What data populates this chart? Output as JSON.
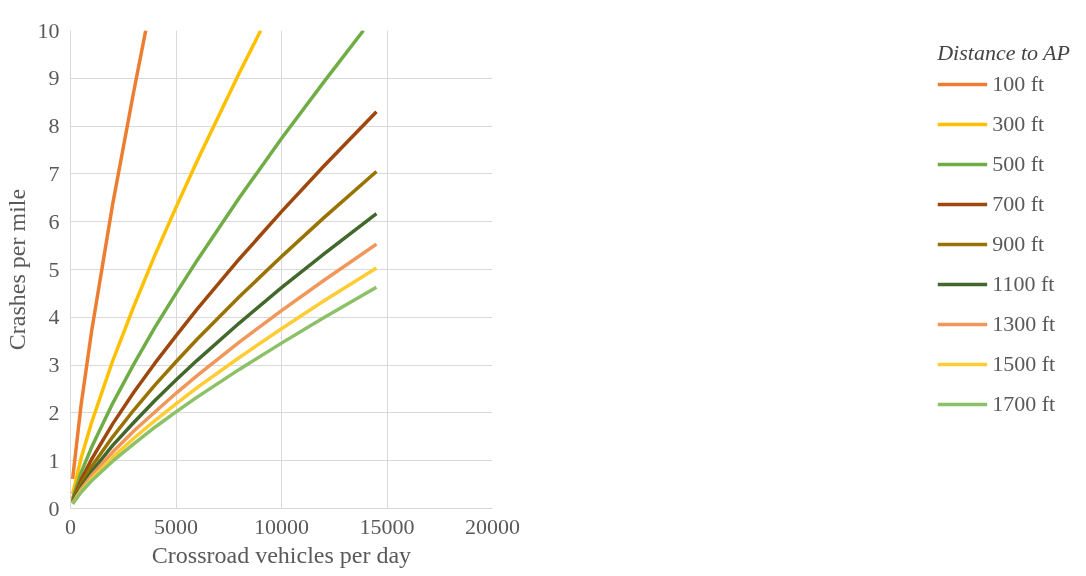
{
  "chart_data": {
    "type": "line",
    "xlabel": "Crossroad vehicles per day",
    "ylabel": "Crashes per mile",
    "legend_title": "Distance to AP",
    "xlim": [
      0,
      20000
    ],
    "xticks": [
      0,
      5000,
      10000,
      15000,
      20000
    ],
    "ylim": [
      0,
      10
    ],
    "yticks": [
      0,
      1,
      2,
      3,
      4,
      5,
      6,
      7,
      8,
      9,
      10
    ],
    "grid": true,
    "legend": "right",
    "line_style": "solid",
    "series": [
      {
        "name": "100 ft",
        "color": "#ed7d31",
        "x": [
          100,
          500,
          1000,
          2000,
          3000,
          3565
        ],
        "values": [
          0.62,
          2.16,
          3.71,
          6.37,
          8.73,
          10
        ]
      },
      {
        "name": "300 ft",
        "color": "#ffc000",
        "x": [
          100,
          500,
          1000,
          2000,
          3000,
          4000,
          5000,
          6000,
          8000,
          9014
        ],
        "values": [
          0.3,
          1.05,
          1.8,
          3.09,
          4.23,
          5.3,
          6.3,
          7.27,
          9.11,
          10
        ]
      },
      {
        "name": "500 ft",
        "color": "#70ad47",
        "x": [
          100,
          500,
          1000,
          2000,
          3000,
          4000,
          5000,
          6000,
          8000,
          10000,
          12000,
          13884
        ],
        "values": [
          0.21,
          0.75,
          1.28,
          2.2,
          3.02,
          3.79,
          4.5,
          5.19,
          6.5,
          7.74,
          8.92,
          10
        ]
      },
      {
        "name": "700 ft",
        "color": "#9e480e",
        "x": [
          100,
          500,
          1000,
          2000,
          3000,
          4000,
          5000,
          6000,
          8000,
          10000,
          12000,
          14500
        ],
        "values": [
          0.17,
          0.6,
          1.03,
          1.77,
          2.43,
          3.04,
          3.61,
          4.17,
          5.22,
          6.21,
          7.16,
          8.3
        ]
      },
      {
        "name": "900 ft",
        "color": "#997300",
        "x": [
          100,
          500,
          1000,
          2000,
          3000,
          4000,
          5000,
          6000,
          8000,
          10000,
          12000,
          14500
        ],
        "values": [
          0.15,
          0.51,
          0.88,
          1.5,
          2.06,
          2.58,
          3.07,
          3.54,
          4.43,
          5.27,
          6.08,
          7.05
        ]
      },
      {
        "name": "1100 ft",
        "color": "#43682b",
        "x": [
          100,
          500,
          1000,
          2000,
          3000,
          4000,
          5000,
          6000,
          8000,
          10000,
          12000,
          14500
        ],
        "values": [
          0.13,
          0.45,
          0.77,
          1.32,
          1.8,
          2.26,
          2.69,
          3.1,
          3.88,
          4.62,
          5.32,
          6.17
        ]
      },
      {
        "name": "1300 ft",
        "color": "#f1975a",
        "x": [
          100,
          500,
          1000,
          2000,
          3000,
          4000,
          5000,
          6000,
          8000,
          10000,
          12000,
          14500
        ],
        "values": [
          0.11,
          0.4,
          0.69,
          1.18,
          1.62,
          2.02,
          2.41,
          2.78,
          3.48,
          4.14,
          4.77,
          5.53
        ]
      },
      {
        "name": "1500 ft",
        "color": "#ffcd33",
        "x": [
          100,
          500,
          1000,
          2000,
          3000,
          4000,
          5000,
          6000,
          8000,
          10000,
          12000,
          14500
        ],
        "values": [
          0.1,
          0.36,
          0.62,
          1.07,
          1.47,
          1.84,
          2.19,
          2.53,
          3.16,
          3.76,
          4.34,
          5.03
        ]
      },
      {
        "name": "1700 ft",
        "color": "#8cc168",
        "x": [
          100,
          500,
          1000,
          2000,
          3000,
          4000,
          5000,
          6000,
          8000,
          10000,
          12000,
          14500
        ],
        "values": [
          0.1,
          0.34,
          0.58,
          0.99,
          1.35,
          1.7,
          2.02,
          2.33,
          2.91,
          3.46,
          3.99,
          4.63
        ]
      }
    ]
  }
}
